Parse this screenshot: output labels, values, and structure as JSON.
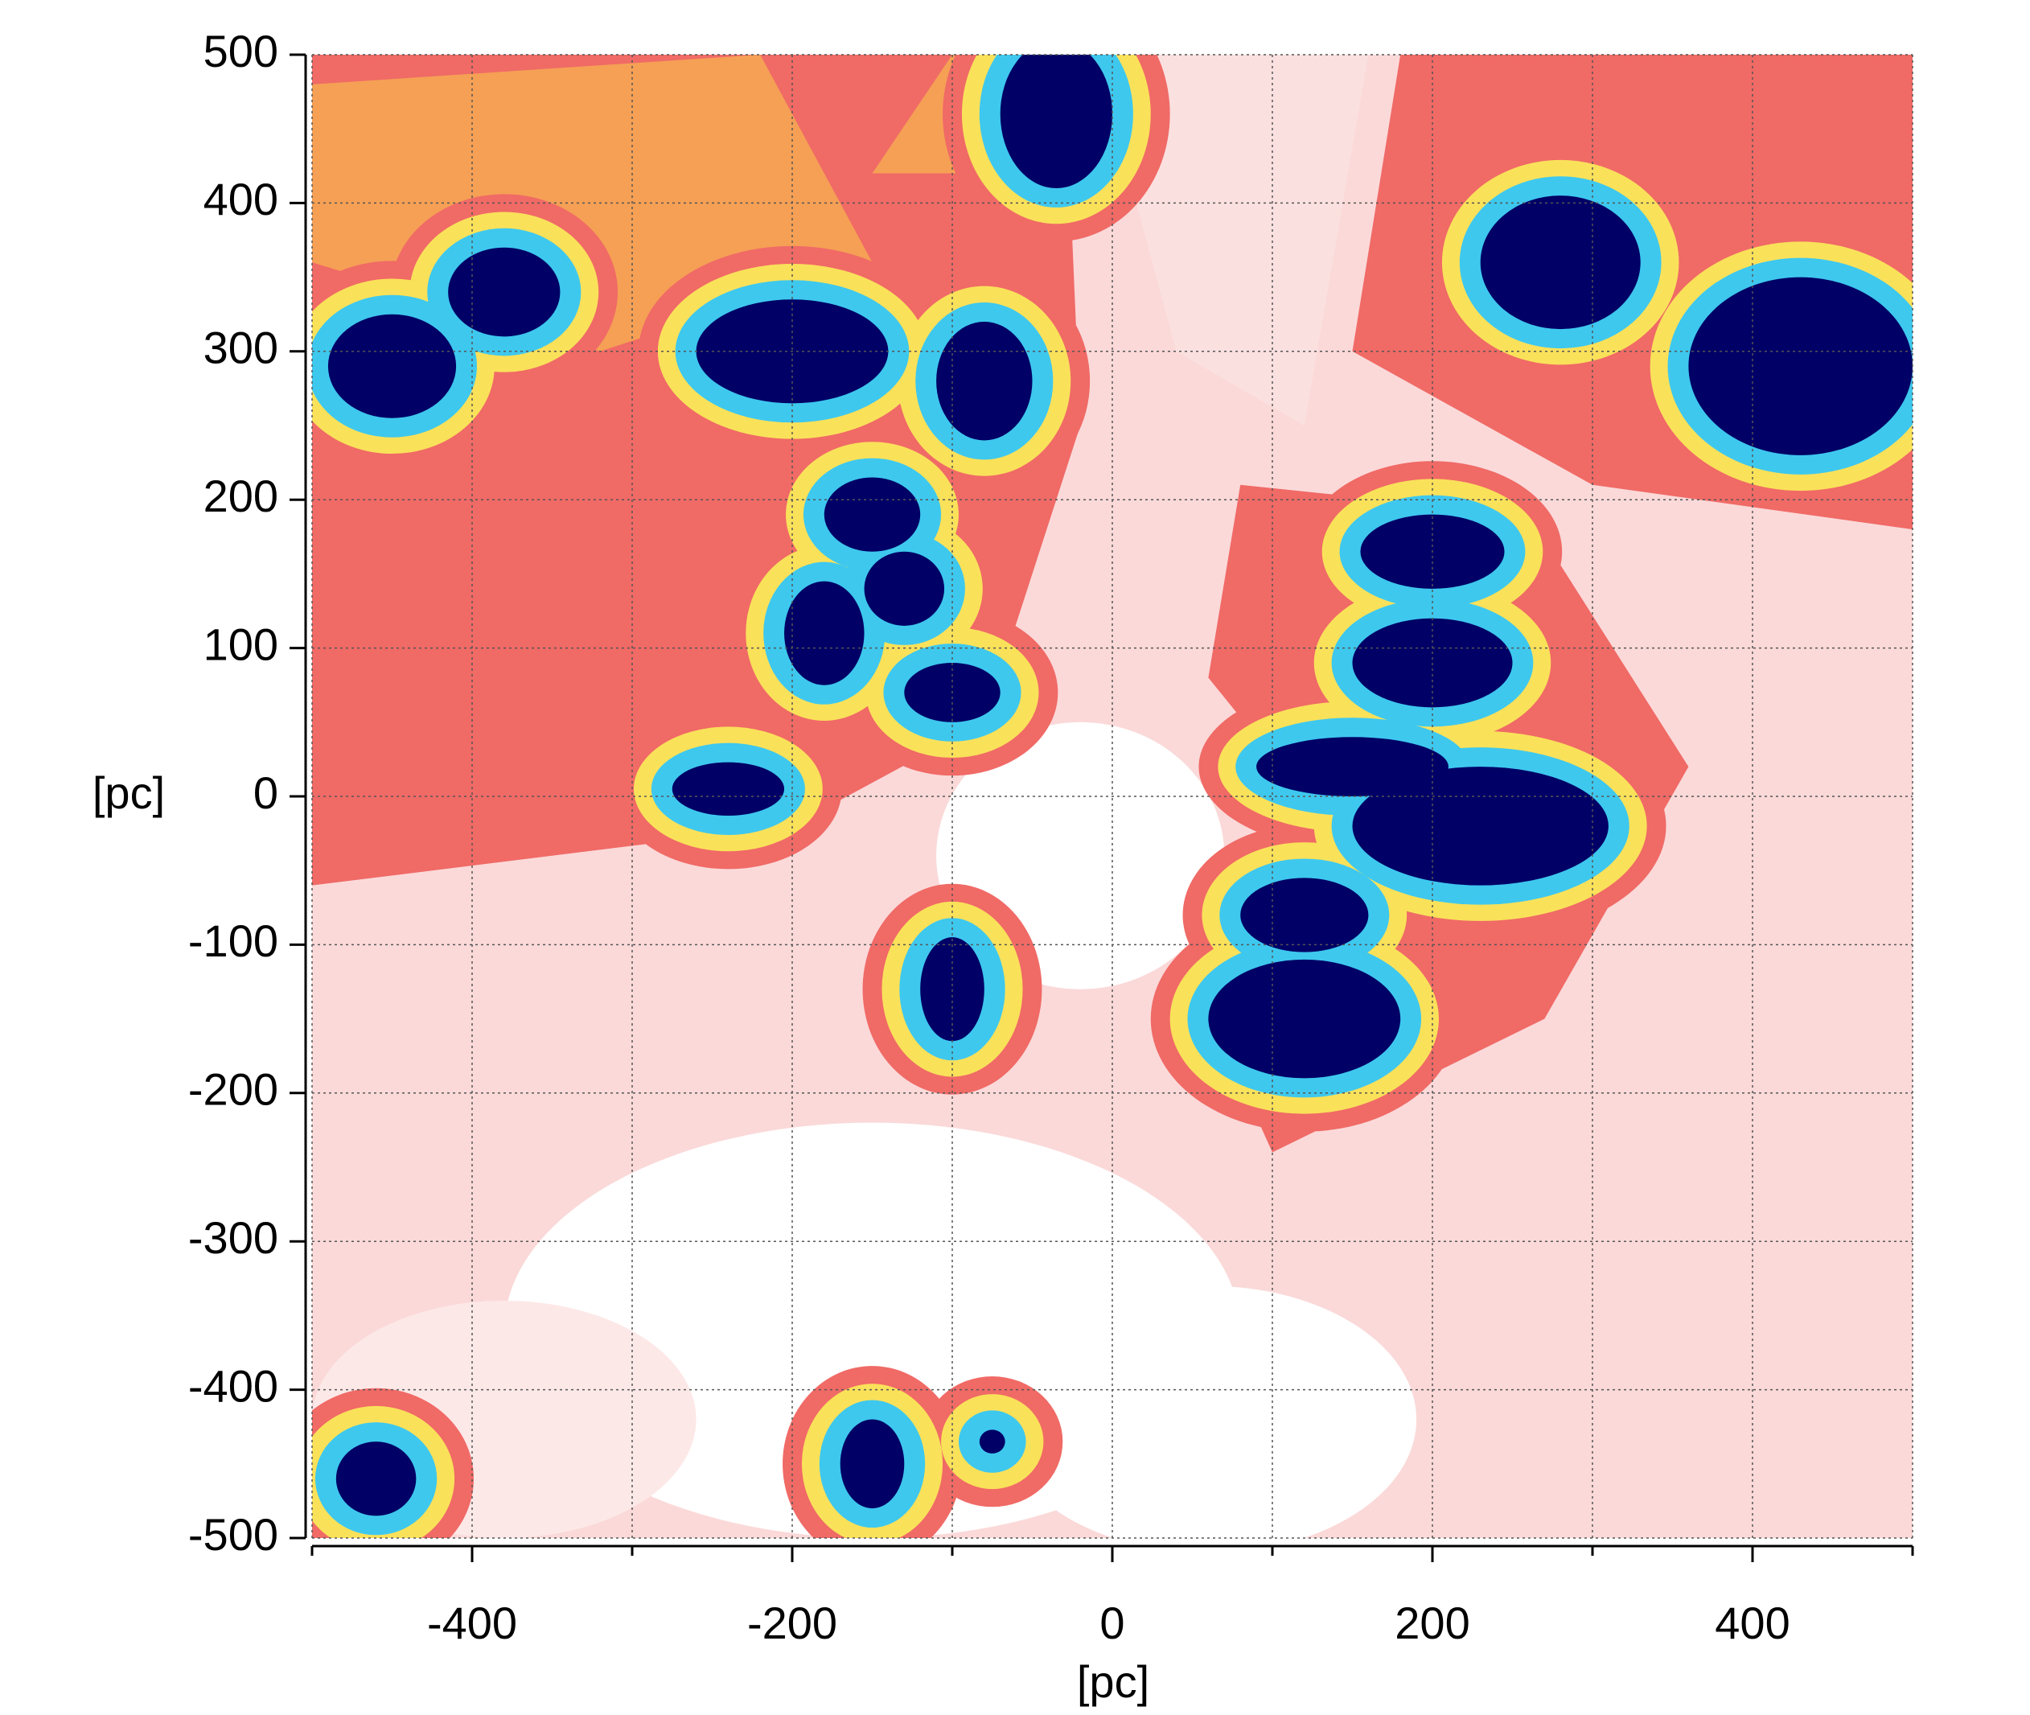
{
  "chart_data": {
    "type": "heatmap",
    "xlabel": "[pc]",
    "ylabel": "[pc]",
    "xlim": [
      -500,
      500
    ],
    "ylim": [
      -500,
      500
    ],
    "xticks": [
      -400,
      -200,
      0,
      200,
      400
    ],
    "xminorticks": [
      -500,
      -300,
      -100,
      100,
      300,
      500
    ],
    "yticks": [
      -500,
      -400,
      -300,
      -200,
      -100,
      0,
      100,
      200,
      300,
      400,
      500
    ],
    "grid": true
  }
}
